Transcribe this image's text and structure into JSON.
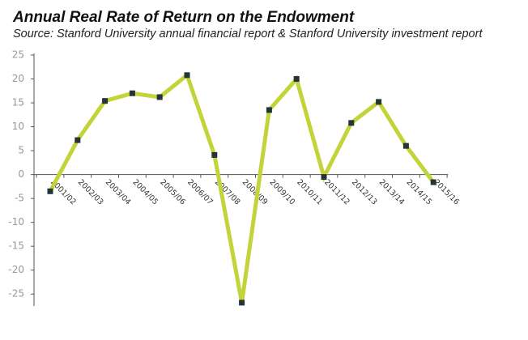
{
  "chart_data": {
    "type": "line",
    "title": "Annual Real Rate of Return on the Endowment",
    "subtitle": "Source: Stanford University annual financial report & Stanford University investment report",
    "categories": [
      "2001/02",
      "2002/03",
      "2003/04",
      "2004/05",
      "2005/06",
      "2006/07",
      "2007/08",
      "2008/09",
      "2009/10",
      "2010/11",
      "2011/12",
      "2012/13",
      "2013/14",
      "2014/15",
      "2015/16"
    ],
    "values": [
      -3.5,
      7.2,
      15.4,
      17,
      16.2,
      20.8,
      4.1,
      -26.8,
      13.5,
      20,
      -0.5,
      10.8,
      15.2,
      6,
      -1.6
    ],
    "color": "#c3d43b",
    "marker_color": "#26343a",
    "ylim": [
      -27.5,
      25
    ],
    "yticks": [
      -25,
      -20,
      -15,
      -10,
      -5,
      0,
      5,
      10,
      15,
      20,
      25
    ]
  }
}
